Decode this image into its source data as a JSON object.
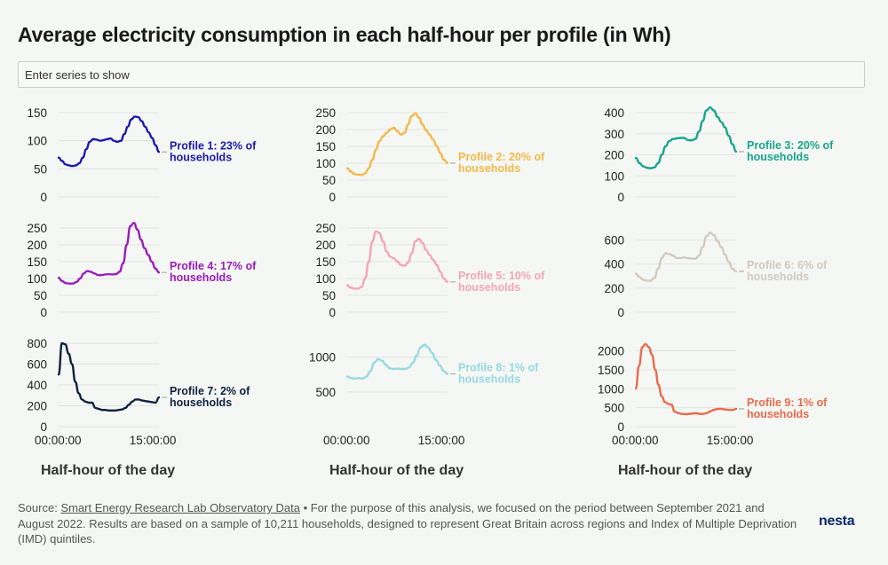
{
  "title": "Average electricity consumption in each half-hour per profile (in Wh)",
  "search": {
    "placeholder": "Enter series to show"
  },
  "x_axis_title": "Half-hour of the day",
  "x_ticks": [
    "00:00:00",
    "15:00:00"
  ],
  "footer": {
    "source_prefix": "Source:",
    "source_link": "Smart Energy Research Lab Observatory Data",
    "text": "• For the purpose of this analysis, we focused on the period between September 2021 and August 2022. Results are based on a sample of 10,211 households, designed to represent Great Britain across regions and Index of Multiple Deprivation (IMD) quintiles."
  },
  "logo": {
    "text": "nesta",
    "accent": "#ff6e47"
  },
  "chart_data": [
    {
      "type": "line",
      "label_line1": "Profile 1: 23% of",
      "label_line2": "households",
      "color": "#1d1aae",
      "y_ticks": [
        0,
        50,
        100,
        150
      ],
      "ylim": [
        0,
        150
      ],
      "values": [
        70,
        64,
        58,
        56,
        55,
        56,
        60,
        70,
        85,
        98,
        103,
        102,
        100,
        101,
        103,
        104,
        100,
        98,
        100,
        112,
        125,
        138,
        143,
        142,
        135,
        125,
        115,
        105,
        92,
        80
      ]
    },
    {
      "type": "line",
      "label_line1": "Profile 2: 20% of",
      "label_line2": "households",
      "color": "#f4b84a",
      "y_ticks": [
        0,
        50,
        100,
        150,
        200,
        250
      ],
      "ylim": [
        0,
        250
      ],
      "values": [
        85,
        75,
        68,
        66,
        65,
        70,
        85,
        110,
        140,
        165,
        180,
        190,
        200,
        205,
        195,
        185,
        190,
        215,
        240,
        248,
        235,
        215,
        198,
        185,
        170,
        150,
        130,
        110,
        100
      ]
    },
    {
      "type": "line",
      "label_line1": "Profile 3: 20% of",
      "label_line2": "households",
      "color": "#18a48c",
      "y_ticks": [
        0,
        100,
        200,
        300,
        400
      ],
      "ylim": [
        0,
        400
      ],
      "values": [
        185,
        160,
        145,
        138,
        136,
        140,
        160,
        200,
        240,
        265,
        275,
        278,
        280,
        280,
        270,
        268,
        275,
        310,
        360,
        410,
        425,
        410,
        380,
        355,
        330,
        290,
        250,
        215
      ]
    },
    {
      "type": "line",
      "label_line1": "Profile 4: 17% of",
      "label_line2": "households",
      "color": "#9a1bbe",
      "y_ticks": [
        0,
        50,
        100,
        150,
        200,
        250
      ],
      "ylim": [
        0,
        250
      ],
      "values": [
        102,
        92,
        86,
        85,
        85,
        90,
        100,
        115,
        122,
        120,
        115,
        110,
        110,
        112,
        113,
        112,
        113,
        120,
        145,
        200,
        255,
        265,
        245,
        215,
        190,
        170,
        150,
        130,
        118
      ]
    },
    {
      "type": "line",
      "label_line1": "Profile 5: 10% of",
      "label_line2": "households",
      "color": "#f6a4b7",
      "y_ticks": [
        0,
        50,
        100,
        150,
        200,
        250
      ],
      "ylim": [
        0,
        250
      ],
      "values": [
        80,
        73,
        70,
        70,
        75,
        100,
        150,
        210,
        240,
        235,
        210,
        180,
        165,
        160,
        150,
        140,
        138,
        148,
        175,
        210,
        218,
        205,
        185,
        170,
        155,
        140,
        120,
        100,
        90
      ]
    },
    {
      "type": "line",
      "label_line1": "Profile 6: 6% of",
      "label_line2": "households",
      "color": "#d2c9c0",
      "y_ticks": [
        0,
        200,
        400,
        600
      ],
      "ylim": [
        0,
        700
      ],
      "values": [
        320,
        290,
        270,
        262,
        262,
        285,
        360,
        450,
        490,
        485,
        470,
        450,
        450,
        455,
        450,
        445,
        445,
        470,
        540,
        630,
        660,
        640,
        590,
        540,
        480,
        420,
        360,
        340
      ]
    },
    {
      "type": "line",
      "label_line1": "Profile 7: 2% of",
      "label_line2": "households",
      "color": "#0f2140",
      "y_ticks": [
        0,
        200,
        400,
        600,
        800
      ],
      "ylim": [
        0,
        800
      ],
      "values": [
        500,
        800,
        790,
        700,
        600,
        430,
        320,
        260,
        240,
        230,
        230,
        180,
        170,
        160,
        160,
        155,
        155,
        155,
        160,
        165,
        180,
        210,
        240,
        260,
        260,
        250,
        245,
        240,
        235,
        230,
        280
      ]
    },
    {
      "type": "line",
      "label_line1": "Profile 8: 1% of",
      "label_line2": "households",
      "color": "#97d9e3",
      "y_ticks": [
        500,
        1000
      ],
      "ylim": [
        0,
        1200
      ],
      "values": [
        720,
        700,
        690,
        700,
        690,
        720,
        800,
        920,
        970,
        950,
        890,
        840,
        830,
        835,
        830,
        830,
        850,
        920,
        1020,
        1140,
        1180,
        1140,
        1060,
        960,
        880,
        800,
        760
      ]
    },
    {
      "type": "line",
      "label_line1": "Profile 9: 1% of",
      "label_line2": "households",
      "color": "#eb6a4b",
      "y_ticks": [
        0,
        500,
        1000,
        1500,
        2000
      ],
      "ylim": [
        0,
        2200
      ],
      "values": [
        1000,
        1600,
        2100,
        2180,
        2100,
        1900,
        1500,
        1100,
        800,
        650,
        600,
        580,
        400,
        360,
        340,
        330,
        330,
        340,
        350,
        350,
        330,
        340,
        360,
        400,
        440,
        460,
        470,
        460,
        450,
        440,
        440,
        470
      ]
    }
  ]
}
